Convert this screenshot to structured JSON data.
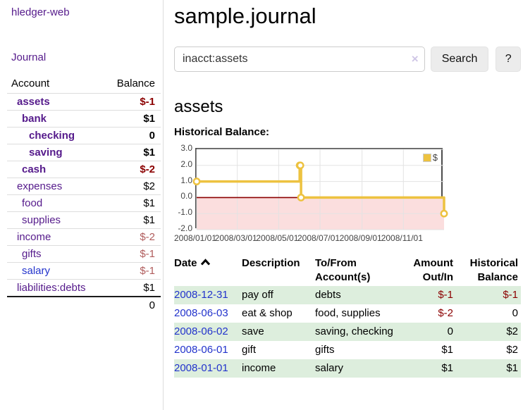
{
  "colors": {
    "accent_purple": "#551a8b",
    "link_blue": "#2233cc",
    "negative_red": "#8b0000",
    "negative_muted": "#b05c5c",
    "row_stripe_green": "#ddeedd",
    "chart_yellow": "#edc240",
    "chart_negative_fill": "#fbdede",
    "chart_zero_line": "#8b0000",
    "chart_grid": "#e3e3e3",
    "chart_border": "#4d4d4d"
  },
  "sidebar": {
    "brand": "hledger-web",
    "journal_label": "Journal",
    "accounts_table": {
      "account_header": "Account",
      "balance_header": "Balance",
      "rows": [
        {
          "name": "assets",
          "balance": "$-1",
          "depth": 1,
          "bold": true,
          "negative": true,
          "strong": true
        },
        {
          "name": "bank",
          "balance": "$1",
          "depth": 2,
          "bold": true,
          "negative": false
        },
        {
          "name": "checking",
          "balance": "0",
          "depth": 3,
          "bold": true,
          "negative": false
        },
        {
          "name": "saving",
          "balance": "$1",
          "depth": 3,
          "bold": true,
          "negative": false
        },
        {
          "name": "cash",
          "balance": "$-2",
          "depth": 2,
          "bold": true,
          "negative": true,
          "strong": true
        },
        {
          "name": "expenses",
          "balance": "$2",
          "depth": 1,
          "bold": false,
          "negative": false
        },
        {
          "name": "food",
          "balance": "$1",
          "depth": 2,
          "bold": false,
          "negative": false
        },
        {
          "name": "supplies",
          "balance": "$1",
          "depth": 2,
          "bold": false,
          "negative": false
        },
        {
          "name": "income",
          "balance": "$-2",
          "depth": 1,
          "bold": false,
          "negative": true
        },
        {
          "name": "gifts",
          "balance": "$-1",
          "depth": 2,
          "bold": false,
          "negative": true
        },
        {
          "name": "salary",
          "balance": "$-1",
          "depth": 2,
          "bold": false,
          "negative": true,
          "blue_link": true
        },
        {
          "name": "liabilities:debts",
          "balance": "$1",
          "depth": 1,
          "bold": false,
          "negative": false
        }
      ],
      "total": "0"
    }
  },
  "main": {
    "title": "sample.journal",
    "search": {
      "value": "inacct:assets",
      "clear_icon": "×",
      "button_label": "Search",
      "help_label": "?"
    },
    "account_heading": "assets",
    "chart_label": "Historical Balance:",
    "register_table": {
      "headers": [
        {
          "label": "Date",
          "sorted": "asc"
        },
        {
          "label": "Description"
        },
        {
          "label": "To/From Account(s)"
        },
        {
          "label": "Amount Out/In",
          "align": "right"
        },
        {
          "label": "Historical Balance",
          "align": "right"
        }
      ],
      "rows": [
        {
          "date": "2008-12-31",
          "description": "pay off",
          "accounts": "debts",
          "amount": "$-1",
          "amount_negative": true,
          "balance": "$-1",
          "balance_negative": true
        },
        {
          "date": "2008-06-03",
          "description": "eat & shop",
          "accounts": "food, supplies",
          "amount": "$-2",
          "amount_negative": true,
          "balance": "0",
          "balance_negative": false
        },
        {
          "date": "2008-06-02",
          "description": "save",
          "accounts": "saving, checking",
          "amount": "0",
          "amount_negative": false,
          "balance": "$2",
          "balance_negative": false
        },
        {
          "date": "2008-06-01",
          "description": "gift",
          "accounts": "gifts",
          "amount": "$1",
          "amount_negative": false,
          "balance": "$2",
          "balance_negative": false
        },
        {
          "date": "2008-01-01",
          "description": "income",
          "accounts": "salary",
          "amount": "$1",
          "amount_negative": false,
          "balance": "$1",
          "balance_negative": false
        }
      ]
    }
  },
  "chart_data": {
    "type": "line",
    "title": "Historical Balance",
    "step": true,
    "series": [
      {
        "name": "$",
        "color": "#edc240",
        "points": [
          [
            "2008-01-01",
            1
          ],
          [
            "2008-06-01",
            2
          ],
          [
            "2008-06-02",
            2
          ],
          [
            "2008-06-03",
            0
          ],
          [
            "2008-12-31",
            -1
          ]
        ]
      }
    ],
    "x_ticks": [
      "2008/01/01",
      "2008/03/01",
      "2008/05/01",
      "2008/07/01",
      "2008/09/01",
      "2008/11/01"
    ],
    "x_tick_days": [
      0,
      60,
      121,
      182,
      244,
      305
    ],
    "x_range_days": [
      0,
      365
    ],
    "y_ticks": [
      "3.0",
      "2.0",
      "1.0",
      "0.0",
      "-1.0",
      "-2.0"
    ],
    "ylim": [
      -2,
      3
    ],
    "grid": true,
    "legend_position": "top-right",
    "negative_region": true
  }
}
